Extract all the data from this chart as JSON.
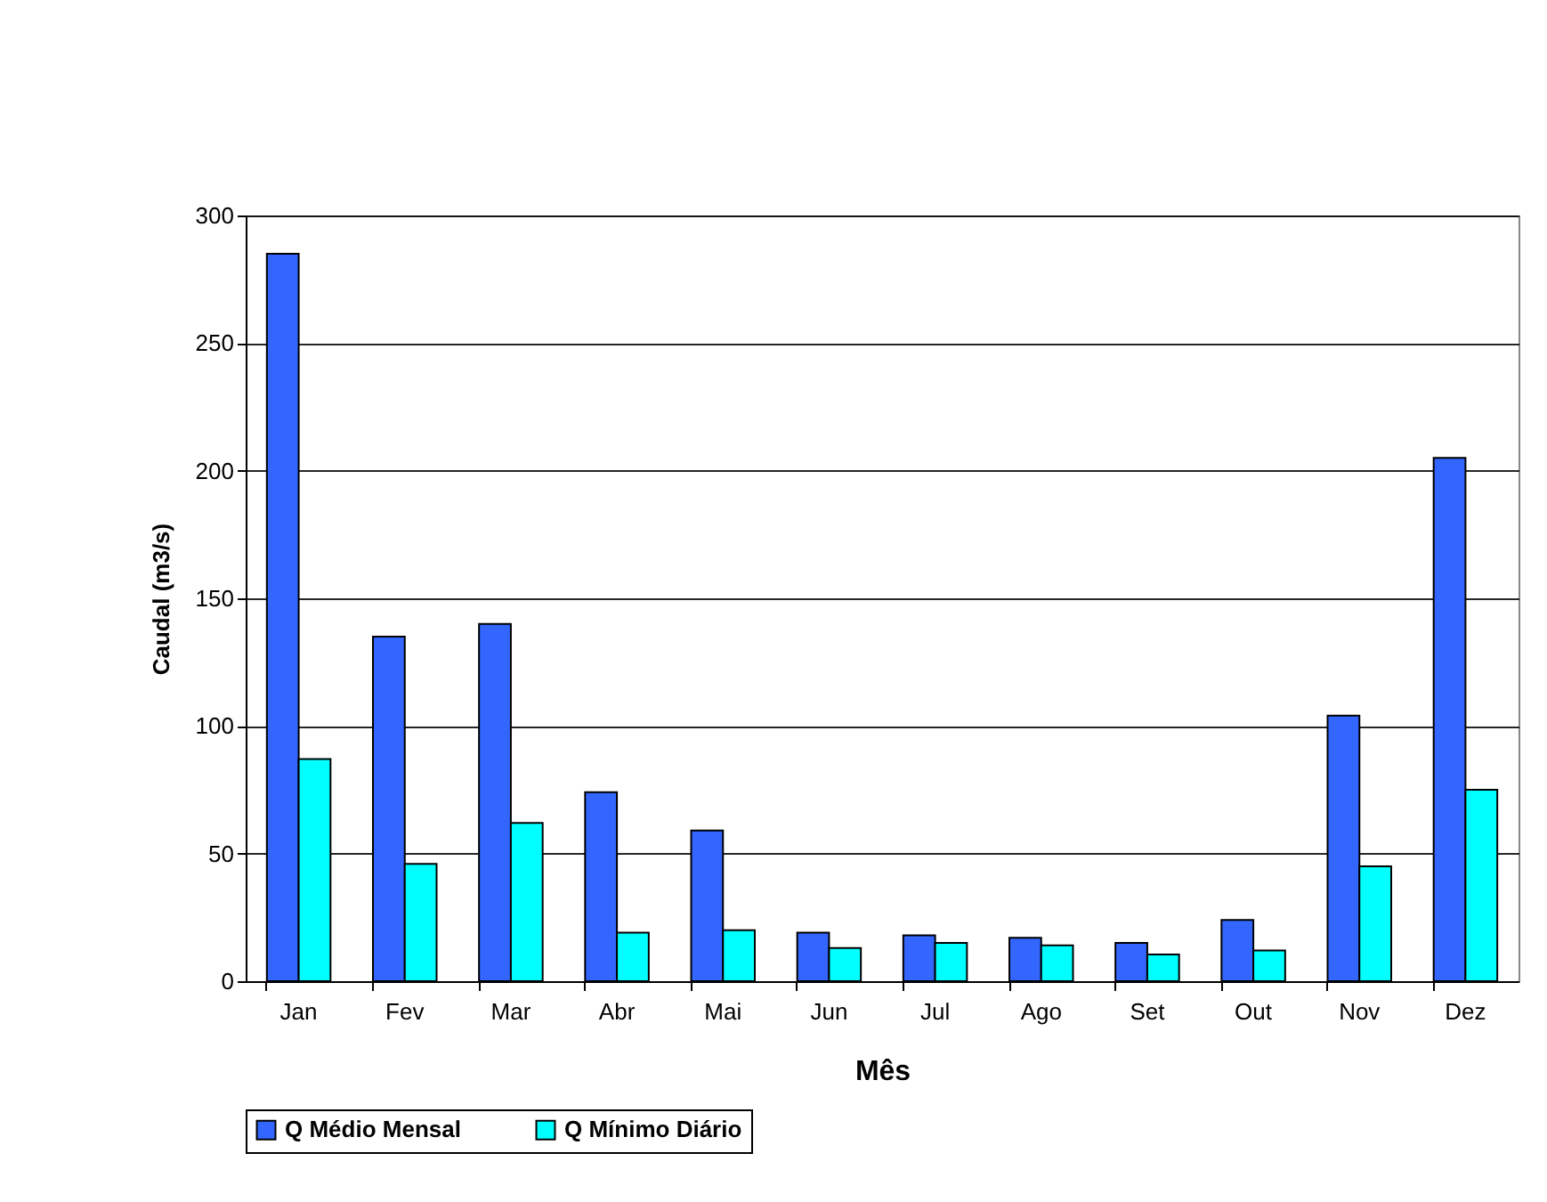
{
  "chart_data": {
    "type": "bar",
    "xlabel": "Mês",
    "ylabel": "Caudal (m3/s)",
    "categories": [
      "Jan",
      "Fev",
      "Mar",
      "Abr",
      "Mai",
      "Jun",
      "Jul",
      "Ago",
      "Set",
      "Out",
      "Nov",
      "Dez"
    ],
    "series": [
      {
        "name": "Q Médio Mensal",
        "color": "#3366ff",
        "values": [
          285,
          135,
          140,
          74,
          59,
          19,
          18,
          17,
          15,
          24,
          104,
          205
        ]
      },
      {
        "name": "Q Mínimo Diário",
        "color": "#00ffff",
        "values": [
          87,
          46,
          62,
          19,
          20,
          13,
          15,
          14,
          10.5,
          12,
          45,
          75
        ]
      }
    ],
    "ylim": [
      0,
      300
    ],
    "yticks": [
      0,
      50,
      100,
      150,
      200,
      250,
      300
    ],
    "grid": "y",
    "legend": "bottom"
  }
}
